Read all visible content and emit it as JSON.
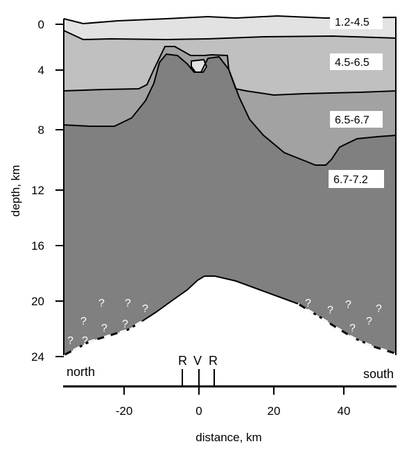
{
  "diagram": {
    "y_axis": {
      "title": "depth, km",
      "ticks": [
        "0",
        "4",
        "8",
        "12",
        "16",
        "20",
        "24"
      ]
    },
    "x_axis": {
      "title": "distance, km",
      "ticks": [
        "-20",
        "0",
        "20",
        "40"
      ]
    },
    "layer_labels": [
      "1.2-4.5",
      "4.5-6.5",
      "6.5-6.7",
      "6.7-7.2"
    ],
    "markers": [
      "R",
      "V",
      "R"
    ],
    "left_label": "north",
    "right_label": "south",
    "uncertain_mark": "?",
    "colors": {
      "layer_top": "#e2e2e2",
      "layer_2": "#c0c0c0",
      "layer_3": "#a2a2a2",
      "layer_4": "#808080",
      "mantle": "#ffffff",
      "line": "#000000"
    }
  }
}
